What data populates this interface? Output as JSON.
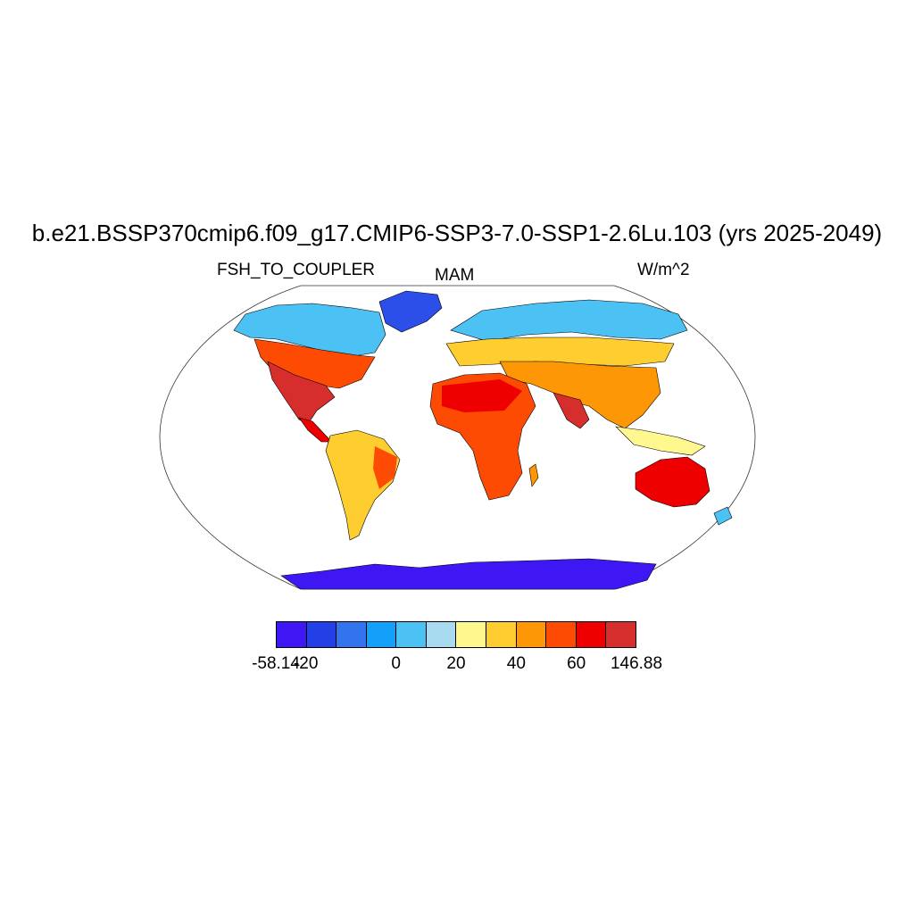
{
  "title": "b.e21.BSSP370cmip6.f09_g17.CMIP6-SSP3-7.0-SSP1-2.6Lu.103 (yrs 2025-2049)",
  "subtitle_left": "FSH_TO_COUPLER",
  "subtitle_center": "MAM",
  "subtitle_right": "W/m^2",
  "colorbar": {
    "colors": [
      "#3f17f5",
      "#2240e6",
      "#3374ee",
      "#12a0fb",
      "#4cc1f4",
      "#a8daf0",
      "#fff88e",
      "#fecd2f",
      "#fe9705",
      "#fe4b04",
      "#ef0000",
      "#d62d2d"
    ],
    "labels": [
      "-58.14",
      "-20",
      "0",
      "20",
      "40",
      "60",
      "146.88"
    ]
  },
  "map": {
    "projection": "Robinson",
    "field": "FSH_TO_COUPLER",
    "land_color_scale": "colorbar"
  }
}
